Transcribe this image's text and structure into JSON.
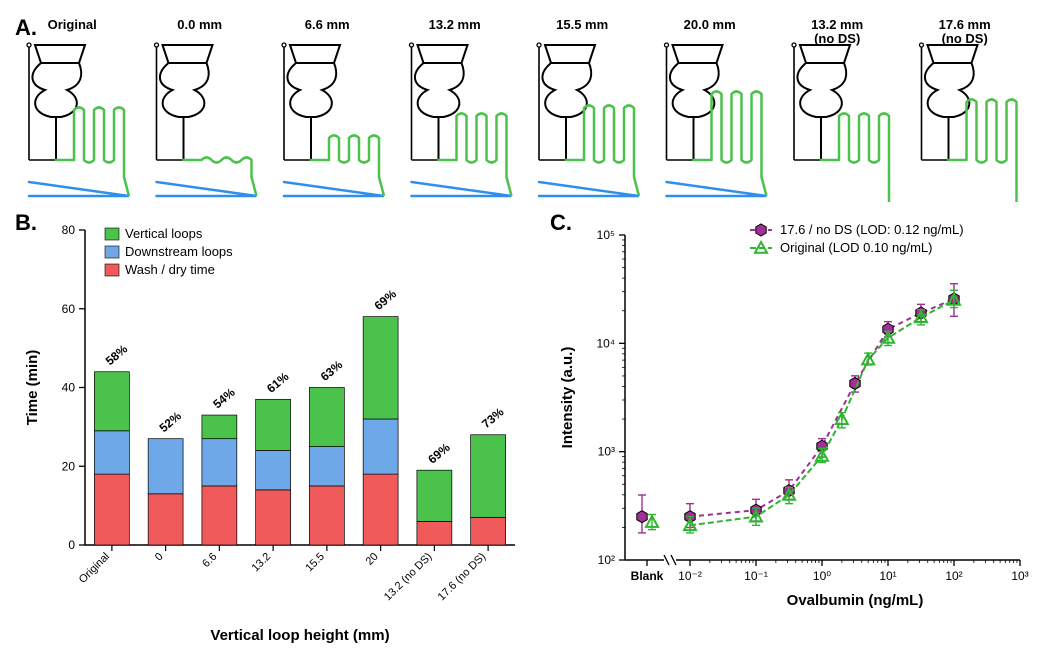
{
  "panelA": {
    "label": "A.",
    "diagrams": [
      {
        "title": "Original",
        "loopHeight": 50,
        "hasDS": true
      },
      {
        "title": "0.0 mm",
        "loopHeight": 0,
        "hasDS": true
      },
      {
        "title": "6.6 mm",
        "loopHeight": 22,
        "hasDS": true
      },
      {
        "title": "13.2 mm",
        "loopHeight": 44,
        "hasDS": true
      },
      {
        "title": "15.5 mm",
        "loopHeight": 52,
        "hasDS": true
      },
      {
        "title": "20.0 mm",
        "loopHeight": 66,
        "hasDS": true
      },
      {
        "title": "13.2 mm\n(no DS)",
        "loopHeight": 44,
        "hasDS": false
      },
      {
        "title": "17.6 mm\n(no DS)",
        "loopHeight": 58,
        "hasDS": false
      }
    ],
    "colors": {
      "funnel": "#000000",
      "loops": "#4bc24b",
      "ds": "#2f8fed"
    }
  },
  "panelB": {
    "label": "B.",
    "ylabel": "Time (min)",
    "xlabel": "Vertical loop height (mm)",
    "ylim": [
      0,
      80
    ],
    "ytick_step": 20,
    "categories": [
      "Original",
      "0",
      "6.6",
      "13.2",
      "15.5",
      "20",
      "13.2 (no DS)",
      "17.6 (no DS)"
    ],
    "pctLabels": [
      "58%",
      "52%",
      "54%",
      "61%",
      "63%",
      "69%",
      "69%",
      "73%"
    ],
    "stacks": [
      {
        "wash": 18,
        "ds": 11,
        "vert": 15
      },
      {
        "wash": 13,
        "ds": 14,
        "vert": 0
      },
      {
        "wash": 15,
        "ds": 12,
        "vert": 6
      },
      {
        "wash": 14,
        "ds": 10,
        "vert": 13
      },
      {
        "wash": 15,
        "ds": 10,
        "vert": 15
      },
      {
        "wash": 18,
        "ds": 14,
        "vert": 26
      },
      {
        "wash": 6,
        "ds": 0,
        "vert": 13
      },
      {
        "wash": 7,
        "ds": 0,
        "vert": 21
      }
    ],
    "colors": {
      "wash": "#f05a5a",
      "ds": "#6fa8e8",
      "vert": "#4bc24b",
      "axis": "#000000",
      "text": "#000000"
    },
    "legend": [
      {
        "name": "Vertical loops",
        "color": "#4bc24b"
      },
      {
        "name": "Downstream loops",
        "color": "#6fa8e8"
      },
      {
        "name": "Wash / dry time",
        "color": "#f05a5a"
      }
    ],
    "bar_width": 0.65,
    "label_fontsize": 15
  },
  "panelC": {
    "label": "C.",
    "xlabel": "Ovalbumin (ng/mL)",
    "ylabel": "Intensity (a.u.)",
    "ylim_log": [
      2,
      5
    ],
    "xlim_log": [
      -2,
      3
    ],
    "xticks": [
      "10⁻²",
      "10⁻¹",
      "10⁰",
      "10¹",
      "10²",
      "10³"
    ],
    "yticks": [
      "10²",
      "10³",
      "10⁴",
      "10⁵"
    ],
    "blank_label": "Blank",
    "series": [
      {
        "name": "17.6  / no DS (LOD: 0.12 ng/mL)",
        "color": "#a02f96",
        "marker": "hexagon",
        "dash": "5,4",
        "blank": {
          "y": 2.4,
          "errL": 2.25,
          "errH": 2.6
        },
        "points": [
          {
            "x": -2,
            "y": 2.4,
            "errL": 2.3,
            "errH": 2.52
          },
          {
            "x": -1,
            "y": 2.46,
            "errL": 2.36,
            "errH": 2.56
          },
          {
            "x": -0.5,
            "y": 2.64,
            "errL": 2.56,
            "errH": 2.74
          },
          {
            "x": 0,
            "y": 3.05,
            "errL": 2.95,
            "errH": 3.12
          },
          {
            "x": 0.5,
            "y": 3.63,
            "errL": 3.55,
            "errH": 3.7
          },
          {
            "x": 1,
            "y": 4.13,
            "errL": 4.06,
            "errH": 4.2
          },
          {
            "x": 1.5,
            "y": 4.28,
            "errL": 4.2,
            "errH": 4.36
          },
          {
            "x": 2,
            "y": 4.41,
            "errL": 4.25,
            "errH": 4.55
          }
        ]
      },
      {
        "name": "Original (LOD 0.10 ng/mL)",
        "color": "#2fb52f",
        "marker": "triangle",
        "dash": "6,3",
        "blank": {
          "y": 2.35,
          "errL": 2.28,
          "errH": 2.42
        },
        "points": [
          {
            "x": -2,
            "y": 2.32,
            "errL": 2.25,
            "errH": 2.4
          },
          {
            "x": -1,
            "y": 2.4,
            "errL": 2.32,
            "errH": 2.48
          },
          {
            "x": -0.5,
            "y": 2.6,
            "errL": 2.52,
            "errH": 2.67
          },
          {
            "x": 0,
            "y": 2.96,
            "errL": 2.9,
            "errH": 3.03
          },
          {
            "x": 0.3,
            "y": 3.3,
            "errL": 3.22,
            "errH": 3.36
          },
          {
            "x": 0.7,
            "y": 3.85,
            "errL": 3.8,
            "errH": 3.91
          },
          {
            "x": 1,
            "y": 4.05,
            "errL": 3.98,
            "errH": 4.11
          },
          {
            "x": 1.5,
            "y": 4.24,
            "errL": 4.17,
            "errH": 4.31
          },
          {
            "x": 2,
            "y": 4.4,
            "errL": 4.33,
            "errH": 4.49
          }
        ]
      }
    ],
    "axis_color": "#000000"
  }
}
